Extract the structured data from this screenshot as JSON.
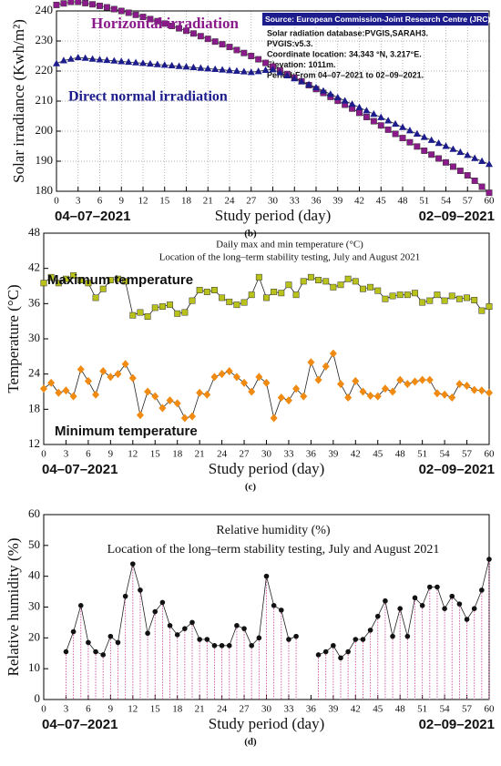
{
  "chart_data": [
    {
      "type": "line",
      "caption": "(b)",
      "ylabel": "Solar irradiance (Kwh/m²)",
      "xlabel": "Study period (day)",
      "date_start": "04–07–2021",
      "date_end": "02–09–2021",
      "grid": true,
      "xlim": [
        0,
        60
      ],
      "xticks": [
        0,
        3,
        6,
        9,
        12,
        15,
        18,
        21,
        24,
        27,
        30,
        33,
        36,
        39,
        42,
        45,
        48,
        51,
        54,
        57,
        60
      ],
      "ylim": [
        180,
        240
      ],
      "yticks": [
        180,
        190,
        200,
        210,
        220,
        230,
        240
      ],
      "source_title": "Source: European Commission-Joint Research Centre (JRC)",
      "source_lines": [
        "Solar radiation database:PVGIS,SARAH3.",
        "PVGIS:v5.3.",
        "Coordinate location: 34.343 °N, 3.217°E.",
        "Elevation: 1011m.",
        "Period:From 04–07–2021 to 02–09–2021."
      ],
      "x": [
        0,
        1,
        2,
        3,
        4,
        5,
        6,
        7,
        8,
        9,
        10,
        11,
        12,
        13,
        14,
        15,
        16,
        17,
        18,
        19,
        20,
        21,
        22,
        23,
        24,
        25,
        26,
        27,
        28,
        29,
        30,
        31,
        32,
        33,
        34,
        35,
        36,
        37,
        38,
        39,
        40,
        41,
        42,
        43,
        44,
        45,
        46,
        47,
        48,
        49,
        50,
        51,
        52,
        53,
        54,
        55,
        56,
        57,
        58,
        59,
        60
      ],
      "series": [
        {
          "name": "Horizontal irradiation",
          "color": "#8b1a8b",
          "marker": "square",
          "values": [
            242,
            242.5,
            243,
            243,
            242.6,
            242.2,
            241.7,
            241.2,
            240.6,
            240,
            239.4,
            238.7,
            238,
            237.3,
            236.6,
            235.8,
            235,
            234.2,
            233.4,
            232.5,
            231.6,
            230.7,
            229.8,
            228.9,
            228,
            227,
            226,
            225,
            223.9,
            222.7,
            221.5,
            220.2,
            219,
            217.8,
            216.6,
            215.3,
            214,
            212.7,
            211.4,
            210.1,
            208.8,
            207.5,
            206.1,
            204.7,
            203.3,
            201.9,
            200.5,
            199.1,
            197.7,
            196.3,
            194.9,
            193.5,
            192.2,
            190.9,
            189.6,
            188.2,
            186.8,
            185.3,
            183.5,
            181.5,
            179.5
          ]
        },
        {
          "name": "Direct normal irradiation",
          "color": "#1c1c8c",
          "marker": "triangle",
          "values": [
            222.5,
            223.5,
            224,
            224.5,
            224.3,
            224,
            223.8,
            223.6,
            223.4,
            223.2,
            223,
            222.8,
            222.6,
            222.4,
            222.2,
            222,
            221.8,
            221.6,
            221.4,
            221.2,
            221,
            220.8,
            220.6,
            220.4,
            220.2,
            220,
            219.8,
            219.6,
            219.9,
            220.3,
            220.5,
            219.5,
            218.5,
            217.5,
            216.5,
            215.5,
            214.5,
            213.4,
            212.3,
            211.2,
            210.1,
            209,
            207.9,
            206.8,
            205.7,
            204.6,
            203.5,
            202.4,
            201.3,
            200.2,
            199.1,
            198,
            197,
            196,
            195,
            194,
            193,
            192,
            191,
            190,
            189
          ]
        }
      ]
    },
    {
      "type": "line",
      "caption": "(c)",
      "ylabel": "Temperature (°C)",
      "xlabel": "Study period (day)",
      "date_start": "04–07–2021",
      "date_end": "02–09–2021",
      "grid": false,
      "subtitle": [
        "Daily  max and min temperature (°C)",
        "Location of the long–term stability testing, July and August 2021"
      ],
      "xlim": [
        0,
        60
      ],
      "xticks": [
        0,
        3,
        6,
        9,
        12,
        15,
        18,
        21,
        24,
        27,
        30,
        33,
        36,
        39,
        42,
        45,
        48,
        51,
        54,
        57,
        60
      ],
      "ylim": [
        12,
        48
      ],
      "yticks": [
        12,
        18,
        24,
        30,
        36,
        42,
        48
      ],
      "x": [
        0,
        1,
        2,
        3,
        4,
        5,
        6,
        7,
        8,
        9,
        10,
        11,
        12,
        13,
        14,
        15,
        16,
        17,
        18,
        19,
        20,
        21,
        22,
        23,
        24,
        25,
        26,
        27,
        28,
        29,
        30,
        31,
        32,
        33,
        34,
        35,
        36,
        37,
        38,
        39,
        40,
        41,
        42,
        43,
        44,
        45,
        46,
        47,
        48,
        49,
        50,
        51,
        52,
        53,
        54,
        55,
        56,
        57,
        58,
        59,
        60
      ],
      "series": [
        {
          "name": "Maximum temperature",
          "color": "#b8c21a",
          "marker": "square",
          "values": [
            39.5,
            40.5,
            39.5,
            40.2,
            40.8,
            40,
            39.5,
            37,
            38.5,
            40,
            40.2,
            39.8,
            34,
            34.5,
            33.8,
            35.3,
            35.5,
            35.8,
            34.3,
            34.5,
            36.5,
            38.3,
            38,
            38.3,
            37,
            36.3,
            35.8,
            36.2,
            37.5,
            40.5,
            37,
            38,
            37.8,
            39.2,
            37.5,
            39.8,
            40.5,
            40,
            39.8,
            38.8,
            39.2,
            40.2,
            39.8,
            38.5,
            38.8,
            38.2,
            36.8,
            37.3,
            37.5,
            37.5,
            37.8,
            36.2,
            36.5,
            37.5,
            36.5,
            37.3,
            36.8,
            37,
            36.6,
            34.8,
            35.5
          ]
        },
        {
          "name": "Minimum temperature",
          "color": "#f08a10",
          "marker": "diamond",
          "values": [
            21.5,
            22.5,
            20.8,
            21.2,
            20.2,
            24.8,
            22.8,
            20.5,
            24.5,
            23.5,
            24,
            25.7,
            23.3,
            17,
            21,
            20.2,
            18.2,
            19.5,
            19,
            16.5,
            16.8,
            20.8,
            20.5,
            23.5,
            24,
            24.5,
            23.5,
            22.5,
            21,
            23.5,
            22.5,
            16.5,
            20,
            19.5,
            21.5,
            20.2,
            26,
            23,
            25.3,
            27.5,
            22.3,
            20,
            22.8,
            21,
            20.3,
            20.2,
            21.5,
            21,
            23,
            22.3,
            22.7,
            23,
            23,
            20.7,
            20.5,
            20,
            22.3,
            22,
            21.3,
            21.2,
            20.8
          ]
        }
      ]
    },
    {
      "type": "line",
      "caption": "(d)",
      "ylabel": "Relative humidity (%)",
      "xlabel": "Study period (day)",
      "date_start": "04–07–2021",
      "date_end": "02–09–2021",
      "grid": false,
      "droplines": true,
      "dropline_color": "#d0509a",
      "subtitle": [
        "Relative humidity (%)",
        "Location of the long–term stability testing, July and August 2021"
      ],
      "xlim": [
        0,
        60
      ],
      "xticks": [
        0,
        3,
        6,
        9,
        12,
        15,
        18,
        21,
        24,
        27,
        30,
        33,
        36,
        39,
        42,
        45,
        48,
        51,
        54,
        57,
        60
      ],
      "ylim": [
        0,
        60
      ],
      "yticks": [
        0,
        10,
        20,
        30,
        40,
        50,
        60
      ],
      "x": [
        0,
        1,
        2,
        3,
        4,
        5,
        6,
        7,
        8,
        9,
        10,
        11,
        12,
        13,
        14,
        15,
        16,
        17,
        18,
        19,
        20,
        21,
        22,
        23,
        24,
        25,
        26,
        27,
        28,
        29,
        30,
        31,
        32,
        33,
        34,
        35,
        36,
        37,
        38,
        39,
        40,
        41,
        42,
        43,
        44,
        45,
        46,
        47,
        48,
        49,
        50,
        51,
        52,
        53,
        54,
        55,
        56,
        57,
        58,
        59,
        60
      ],
      "series": [
        {
          "color": "#111111",
          "marker": "circle",
          "values": [
            null,
            null,
            null,
            15.5,
            22,
            30.5,
            18.5,
            15.5,
            14.5,
            20.5,
            18.5,
            33.5,
            44,
            35.5,
            21.5,
            28.5,
            31.5,
            24,
            21,
            23,
            25,
            19.5,
            19.5,
            17.5,
            17.5,
            17.5,
            24,
            23,
            17.5,
            20,
            40,
            30.5,
            29,
            19.5,
            20.5,
            null,
            null,
            14.5,
            15.5,
            17.5,
            13.5,
            15.5,
            19.5,
            19.5,
            22.5,
            27,
            32,
            20.5,
            29.5,
            20.5,
            33,
            30.5,
            36.5,
            36.5,
            29.5,
            33.5,
            31,
            26,
            29.5,
            35.5,
            45.5
          ]
        }
      ]
    }
  ]
}
